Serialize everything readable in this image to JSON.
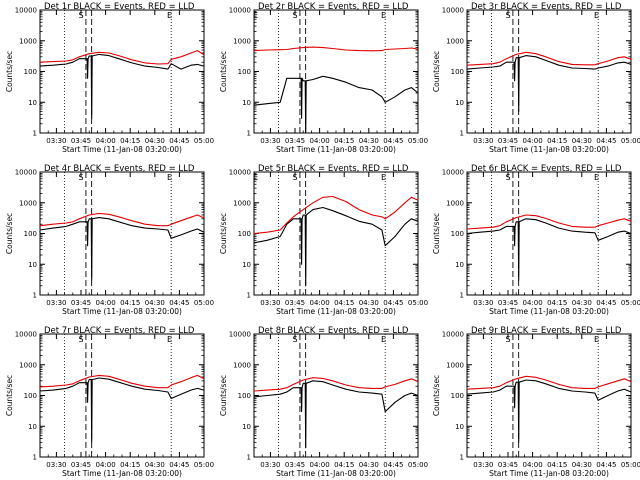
{
  "chart_data": {
    "type": "line",
    "x_tick_labels": [
      "03:30",
      "03:45",
      "04:00",
      "04:15",
      "04:30",
      "04:45",
      "05:00"
    ],
    "x_minutes_range": [
      20,
      120
    ],
    "y_tick_labels": [
      "1",
      "10",
      "100",
      "1000",
      "10000"
    ],
    "ylim": [
      1,
      10000
    ],
    "yscale": "log",
    "ylabel": "Counts/sec",
    "xlabel": "Start Time (11-Jan-08 03:20:00)",
    "series_colors": {
      "events": "#000000",
      "lld": "#e00000"
    },
    "panels": [
      {
        "title": "Det 1r BLACK = Events, RED = LLD",
        "markers": [
          "S",
          "E"
        ],
        "x": [
          20,
          28,
          36,
          40,
          44,
          50,
          56,
          62,
          68,
          76,
          84,
          92,
          98,
          100,
          106,
          112,
          116,
          120
        ],
        "events": [
          150,
          160,
          175,
          200,
          260,
          320,
          360,
          330,
          260,
          190,
          150,
          135,
          120,
          180,
          120,
          160,
          170,
          150
        ],
        "lld": [
          200,
          210,
          220,
          240,
          300,
          380,
          420,
          400,
          330,
          240,
          190,
          175,
          180,
          250,
          300,
          400,
          480,
          350
        ],
        "dips": [
          {
            "x": 49,
            "y": 60
          },
          {
            "x": 51.5,
            "y": 3
          }
        ]
      },
      {
        "title": "Det 2r BLACK = Events, RED = LLD",
        "markers": [
          "E",
          "S",
          "E"
        ],
        "x": [
          20,
          28,
          36,
          40,
          44,
          50,
          56,
          62,
          68,
          76,
          84,
          92,
          98,
          100,
          106,
          112,
          116,
          120
        ],
        "events": [
          8,
          9,
          10,
          60,
          60,
          50,
          55,
          70,
          60,
          45,
          30,
          25,
          15,
          10,
          15,
          25,
          30,
          20
        ],
        "lld": [
          480,
          500,
          510,
          520,
          560,
          600,
          620,
          600,
          560,
          500,
          480,
          470,
          480,
          520,
          540,
          560,
          580,
          540
        ],
        "dips": [
          {
            "x": 49,
            "y": 3
          },
          {
            "x": 51.5,
            "y": 1
          }
        ]
      },
      {
        "title": "Det 3r BLACK = Events, RED = LLD",
        "markers": [
          "S",
          "E"
        ],
        "x": [
          20,
          28,
          36,
          40,
          44,
          50,
          56,
          62,
          68,
          76,
          84,
          92,
          98,
          100,
          106,
          112,
          116,
          120
        ],
        "events": [
          120,
          130,
          140,
          150,
          200,
          280,
          330,
          300,
          230,
          160,
          130,
          125,
          120,
          130,
          150,
          190,
          200,
          170
        ],
        "lld": [
          160,
          170,
          180,
          200,
          260,
          360,
          420,
          380,
          300,
          210,
          170,
          165,
          165,
          180,
          220,
          280,
          300,
          250
        ],
        "dips": [
          {
            "x": 49,
            "y": 50
          },
          {
            "x": 51.5,
            "y": 5
          }
        ]
      },
      {
        "title": "Det 4r BLACK = Events, RED = LLD",
        "markers": [
          "S",
          "E"
        ],
        "x": [
          20,
          28,
          36,
          40,
          44,
          50,
          56,
          62,
          68,
          76,
          84,
          92,
          98,
          100,
          106,
          112,
          116,
          120
        ],
        "events": [
          130,
          150,
          170,
          200,
          240,
          300,
          330,
          300,
          240,
          180,
          150,
          140,
          130,
          70,
          90,
          120,
          140,
          110
        ],
        "lld": [
          180,
          200,
          220,
          240,
          300,
          400,
          450,
          420,
          350,
          260,
          200,
          180,
          180,
          200,
          260,
          340,
          400,
          320
        ],
        "dips": [
          {
            "x": 49,
            "y": 40
          },
          {
            "x": 51.5,
            "y": 3
          }
        ]
      },
      {
        "title": "Det 5r BLACK = Events, RED = LLD",
        "markers": [
          "E",
          "S",
          "E"
        ],
        "x": [
          20,
          28,
          36,
          40,
          44,
          50,
          56,
          62,
          68,
          76,
          84,
          92,
          98,
          100,
          106,
          112,
          116,
          120
        ],
        "events": [
          50,
          60,
          80,
          200,
          300,
          400,
          600,
          700,
          550,
          380,
          250,
          200,
          130,
          40,
          80,
          200,
          300,
          250
        ],
        "lld": [
          100,
          110,
          130,
          220,
          350,
          600,
          1000,
          1500,
          1600,
          1100,
          600,
          400,
          350,
          300,
          500,
          1000,
          1500,
          1200
        ],
        "dips": [
          {
            "x": 49,
            "y": 10
          },
          {
            "x": 51.5,
            "y": 2
          }
        ]
      },
      {
        "title": "Det 6r BLACK = Events, RED = LLD",
        "markers": [
          "S",
          "E"
        ],
        "x": [
          20,
          28,
          36,
          40,
          44,
          50,
          56,
          62,
          68,
          76,
          84,
          92,
          98,
          100,
          106,
          112,
          116,
          120
        ],
        "events": [
          100,
          110,
          120,
          130,
          170,
          240,
          300,
          280,
          220,
          150,
          120,
          110,
          105,
          60,
          80,
          110,
          120,
          100
        ],
        "lld": [
          140,
          150,
          160,
          180,
          240,
          330,
          400,
          380,
          310,
          220,
          170,
          160,
          160,
          180,
          220,
          270,
          300,
          250
        ],
        "dips": [
          {
            "x": 49,
            "y": 40
          },
          {
            "x": 51.5,
            "y": 3
          }
        ]
      },
      {
        "title": "Det 7r BLACK = Events, RED = LLD",
        "markers": [
          "S",
          "E"
        ],
        "x": [
          20,
          28,
          36,
          40,
          44,
          50,
          56,
          62,
          68,
          76,
          84,
          92,
          98,
          100,
          106,
          112,
          116,
          120
        ],
        "events": [
          140,
          150,
          170,
          200,
          260,
          330,
          370,
          340,
          270,
          200,
          160,
          145,
          130,
          80,
          110,
          150,
          170,
          150
        ],
        "lld": [
          190,
          200,
          220,
          240,
          300,
          400,
          450,
          420,
          340,
          250,
          200,
          180,
          180,
          220,
          280,
          380,
          450,
          350
        ],
        "dips": [
          {
            "x": 49,
            "y": 60
          },
          {
            "x": 51.5,
            "y": 3
          }
        ]
      },
      {
        "title": "Det 8r BLACK = Events, RED = LLD",
        "markers": [
          "S",
          "E"
        ],
        "x": [
          20,
          28,
          36,
          40,
          44,
          50,
          56,
          62,
          68,
          76,
          84,
          92,
          98,
          100,
          106,
          112,
          116,
          120
        ],
        "events": [
          90,
          100,
          110,
          130,
          180,
          250,
          300,
          280,
          220,
          160,
          130,
          120,
          110,
          30,
          60,
          100,
          120,
          100
        ],
        "lld": [
          140,
          150,
          160,
          180,
          230,
          320,
          380,
          360,
          300,
          220,
          180,
          170,
          170,
          190,
          230,
          300,
          350,
          280
        ],
        "dips": [
          {
            "x": 49,
            "y": 30
          },
          {
            "x": 51.5,
            "y": 2
          }
        ]
      },
      {
        "title": "Det 9r BLACK = Events, RED = LLD",
        "markers": [
          "S",
          "E"
        ],
        "x": [
          20,
          28,
          36,
          40,
          44,
          50,
          56,
          62,
          68,
          76,
          84,
          92,
          98,
          100,
          106,
          112,
          116,
          120
        ],
        "events": [
          110,
          120,
          130,
          150,
          200,
          270,
          320,
          300,
          240,
          170,
          140,
          130,
          120,
          70,
          100,
          140,
          160,
          130
        ],
        "lld": [
          160,
          170,
          180,
          200,
          260,
          350,
          420,
          390,
          320,
          230,
          180,
          170,
          170,
          190,
          240,
          300,
          350,
          280
        ],
        "dips": [
          {
            "x": 49,
            "y": 40
          },
          {
            "x": 51.5,
            "y": 3
          }
        ]
      }
    ]
  }
}
